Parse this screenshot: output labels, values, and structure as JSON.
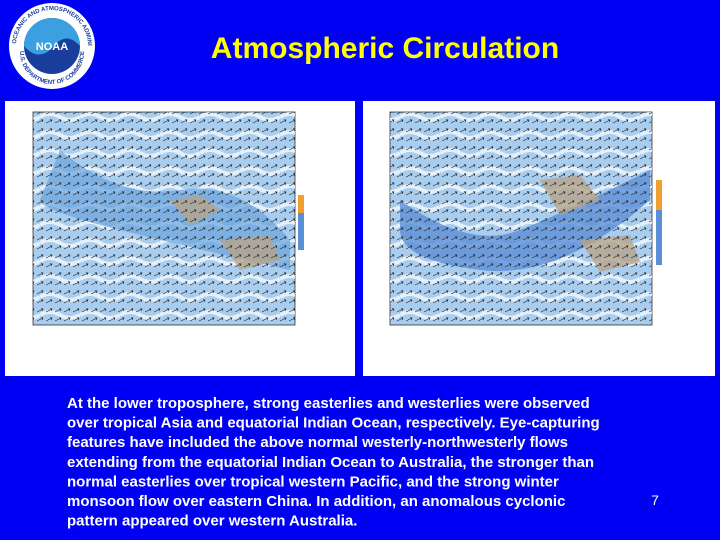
{
  "header": {
    "title": "Atmospheric Circulation"
  },
  "logo": {
    "name": "NOAA",
    "ring_top": "NATIONAL OCEANIC AND ATMOSPHERIC ADMINISTRATION",
    "ring_bottom": "U.S. DEPARTMENT OF COMMERCE"
  },
  "body": {
    "lines": [
      "At the lower troposphere, strong easterlies and westerlies were observed",
      "over tropical Asia and equatorial Indian Ocean, respectively. Eye-capturing",
      "features have included the above normal westerly-northwesterly flows",
      "extending from the equatorial Indian Ocean to Australia, the stronger than",
      "normal easterlies over tropical western Pacific, and the strong winter",
      "monsoon flow over eastern China. In addition, an anomalous cyclonic",
      "pattern appeared over western Australia."
    ]
  },
  "page_number": "7"
}
